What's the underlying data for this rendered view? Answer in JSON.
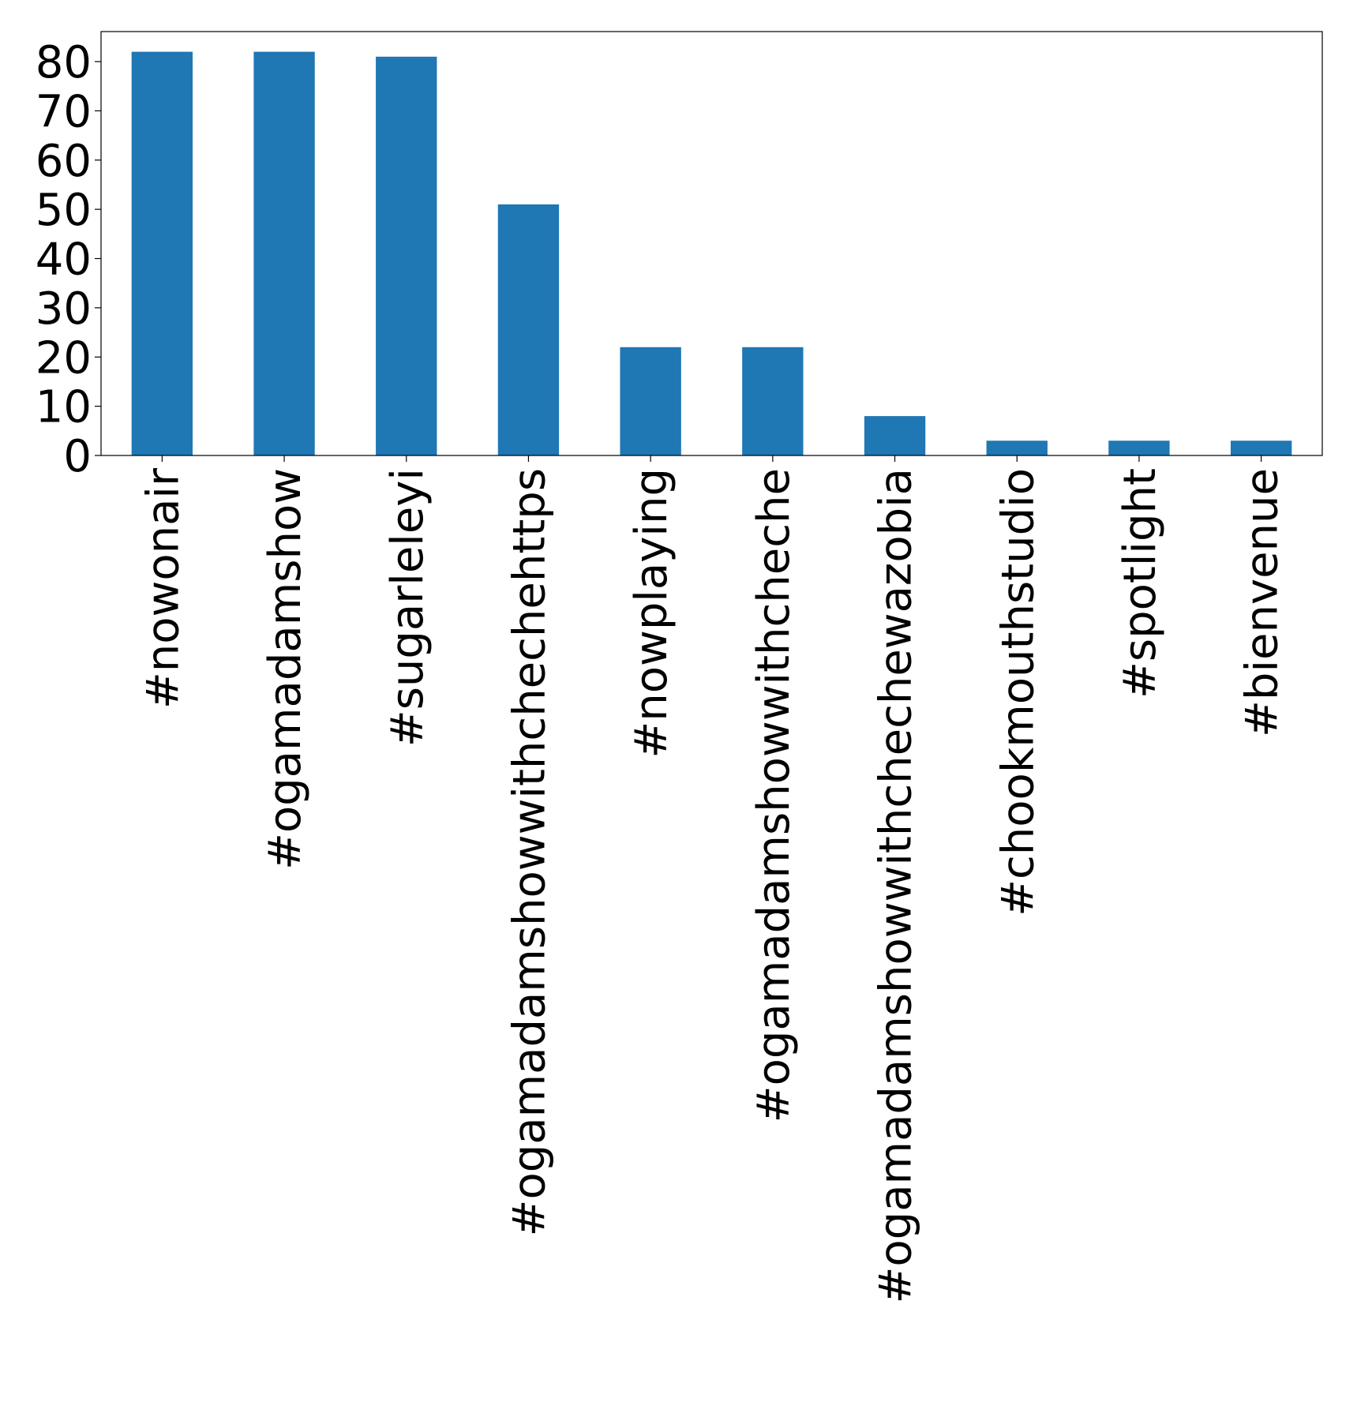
{
  "chart_data": {
    "type": "bar",
    "title": "",
    "xlabel": "",
    "ylabel": "",
    "categories": [
      "#nowonair",
      "#ogamadamshow",
      "#sugarleleyi",
      "#ogamadamshowwithchechehttps",
      "#nowplaying",
      "#ogamadamshowwithcheche",
      "#ogamadamshowwithchechewazobia",
      "#chookmouthstudio",
      "#spotlight",
      "#bienvenue"
    ],
    "values": [
      82,
      82,
      81,
      51,
      22,
      22,
      8,
      3,
      3,
      3
    ],
    "ylim": [
      0,
      86.1
    ],
    "yticks": [
      0,
      10,
      20,
      30,
      40,
      50,
      60,
      70,
      80
    ],
    "grid": false,
    "legend": "none",
    "colors": {
      "bar": "#1f77b4",
      "axis": "#000000",
      "text": "#000000",
      "background": "#ffffff"
    }
  }
}
